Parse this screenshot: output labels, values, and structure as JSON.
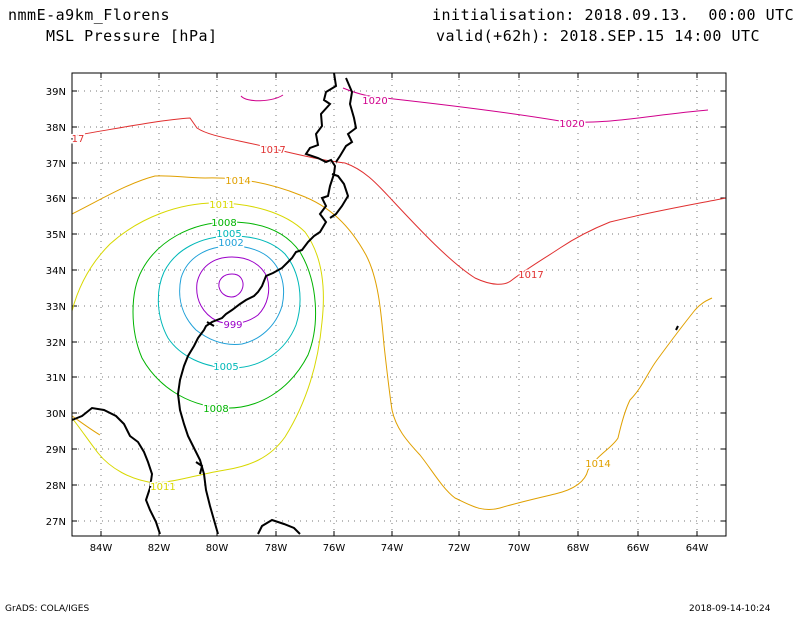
{
  "header": {
    "model": "nmmE-a9km_Florens",
    "field": "MSL Pressure [hPa]",
    "init": "initialisation: 2018.09.13.  00:00 UTC",
    "valid": "valid(+62h): 2018.SEP.15 14:00 UTC"
  },
  "footer": {
    "software": "GrADS: COLA/IGES",
    "timestamp": "2018-09-14-10:24"
  },
  "axes": {
    "lat_labels": [
      "27N",
      "28N",
      "29N",
      "30N",
      "31N",
      "32N",
      "33N",
      "34N",
      "35N",
      "36N",
      "37N",
      "38N",
      "39N"
    ],
    "lon_labels": [
      "84W",
      "82W",
      "80W",
      "78W",
      "76W",
      "74W",
      "72W",
      "70W",
      "68W",
      "66W",
      "64W"
    ]
  },
  "colors": {
    "c999": "#9b00c8",
    "c1002": "#1fa0d8",
    "c1005": "#00b8b8",
    "c1008": "#00b400",
    "c1011": "#d8d800",
    "c1014": "#e0a000",
    "c1017": "#e03030",
    "c1020": "#d0008c"
  },
  "contour_labels": [
    {
      "text": "1020",
      "key": "c1020"
    },
    {
      "text": "1020",
      "key": "c1020"
    },
    {
      "text": "1017",
      "key": "c1017"
    },
    {
      "text": "1017",
      "key": "c1017"
    },
    {
      "text": "17",
      "key": "c1017"
    },
    {
      "text": "1014",
      "key": "c1014"
    },
    {
      "text": "1014",
      "key": "c1014"
    },
    {
      "text": "1011",
      "key": "c1011"
    },
    {
      "text": "1011",
      "key": "c1011"
    },
    {
      "text": "1008",
      "key": "c1008"
    },
    {
      "text": "1008",
      "key": "c1008"
    },
    {
      "text": "1005",
      "key": "c1005"
    },
    {
      "text": "1005",
      "key": "c1005"
    },
    {
      "text": "1002",
      "key": "c1002"
    },
    {
      "text": "999",
      "key": "c999"
    }
  ]
}
